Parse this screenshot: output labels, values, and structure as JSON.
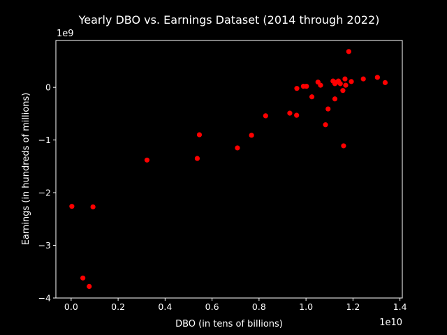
{
  "chart_data": {
    "type": "scatter",
    "title": "Yearly DBO vs. Earnings Dataset (2014 through 2022)",
    "xlabel": "DBO (in tens of billions)",
    "ylabel": "Earnings (in hundreds of millions)",
    "x_offset_label": "1e10",
    "y_offset_label": "1e9",
    "xlim": [
      -0.065,
      1.41
    ],
    "ylim": [
      -4.0,
      0.89
    ],
    "x_scale_factor": 10000000000.0,
    "y_scale_factor": 1000000000.0,
    "x_ticks": [
      0.0,
      0.2,
      0.4,
      0.6,
      0.8,
      1.0,
      1.2,
      1.4
    ],
    "x_tick_labels": [
      "0.0",
      "0.2",
      "0.4",
      "0.6",
      "0.8",
      "1.0",
      "1.2",
      "1.4"
    ],
    "y_ticks": [
      -4,
      -3,
      -2,
      -1,
      0
    ],
    "y_tick_labels": [
      "−4",
      "−3",
      "−2",
      "−1",
      "0"
    ],
    "grid": false,
    "marker_color": "#ff0000",
    "background_color": "#000000",
    "foreground_color": "#ffffff",
    "points": [
      {
        "x": 0.003,
        "y": -2.26
      },
      {
        "x": 0.093,
        "y": -2.27
      },
      {
        "x": 0.05,
        "y": -3.62
      },
      {
        "x": 0.077,
        "y": -3.78
      },
      {
        "x": 0.323,
        "y": -1.38
      },
      {
        "x": 0.537,
        "y": -1.35
      },
      {
        "x": 0.546,
        "y": -0.9
      },
      {
        "x": 0.708,
        "y": -1.15
      },
      {
        "x": 0.768,
        "y": -0.91
      },
      {
        "x": 0.828,
        "y": -0.54
      },
      {
        "x": 0.931,
        "y": -0.49
      },
      {
        "x": 0.96,
        "y": -0.53
      },
      {
        "x": 0.961,
        "y": -0.02
      },
      {
        "x": 0.989,
        "y": 0.02
      },
      {
        "x": 1.002,
        "y": 0.02
      },
      {
        "x": 1.025,
        "y": -0.18
      },
      {
        "x": 1.051,
        "y": 0.1
      },
      {
        "x": 1.062,
        "y": 0.04
      },
      {
        "x": 1.083,
        "y": -0.71
      },
      {
        "x": 1.094,
        "y": -0.41
      },
      {
        "x": 1.115,
        "y": 0.12
      },
      {
        "x": 1.123,
        "y": 0.07
      },
      {
        "x": 1.123,
        "y": -0.22
      },
      {
        "x": 1.131,
        "y": 0.1
      },
      {
        "x": 1.138,
        "y": 0.12
      },
      {
        "x": 1.146,
        "y": 0.07
      },
      {
        "x": 1.157,
        "y": -0.06
      },
      {
        "x": 1.16,
        "y": -1.11
      },
      {
        "x": 1.166,
        "y": 0.16
      },
      {
        "x": 1.169,
        "y": 0.04
      },
      {
        "x": 1.182,
        "y": 0.68
      },
      {
        "x": 1.193,
        "y": 0.11
      },
      {
        "x": 1.244,
        "y": 0.16
      },
      {
        "x": 1.304,
        "y": 0.19
      },
      {
        "x": 1.337,
        "y": 0.09
      }
    ]
  }
}
